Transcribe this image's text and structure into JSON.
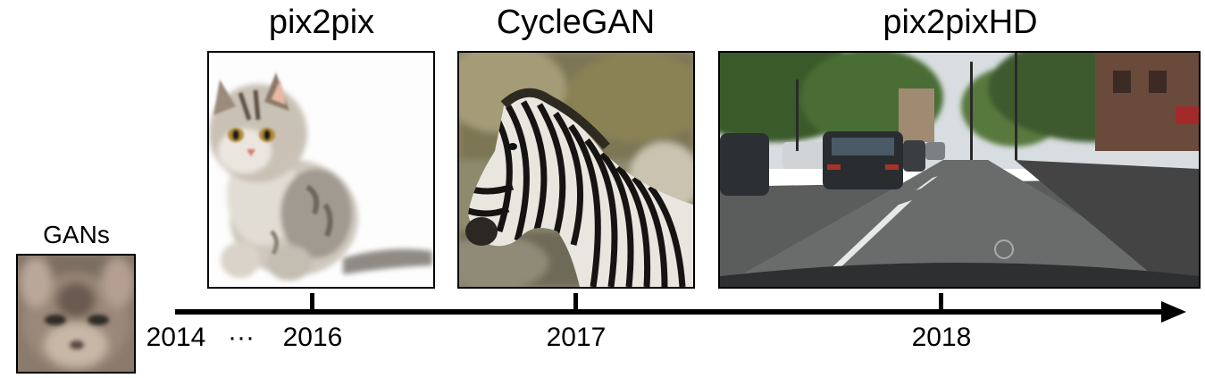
{
  "titles": {
    "gans": "GANs",
    "pix2pix": "pix2pix",
    "cyclegan": "CycleGAN",
    "pix2pixhd": "pix2pixHD"
  },
  "years": {
    "y2014": "2014",
    "ellipsis": "···",
    "y2016": "2016",
    "y2017": "2017",
    "y2018": "2018"
  },
  "images": {
    "gans": "blurry-cat-face",
    "pix2pix": "kitten",
    "cyclegan": "zebra",
    "pix2pixhd": "street-scene"
  }
}
